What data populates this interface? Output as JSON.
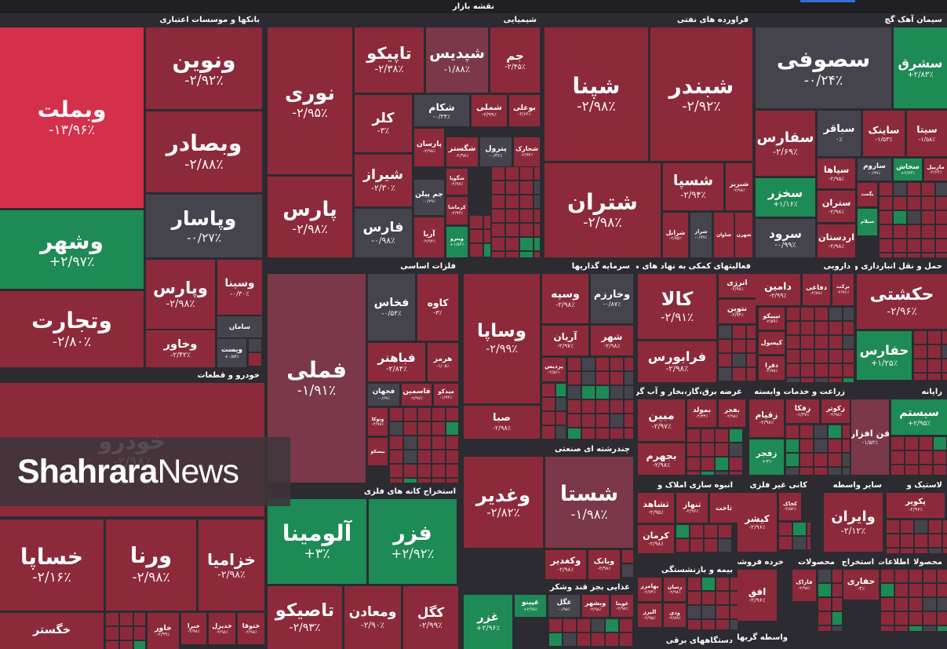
{
  "title": "نقشه بازار",
  "watermark": {
    "brand": "Shahrara",
    "suffix": "News"
  },
  "sectors": [
    {
      "name": "بانکها و موسسات اعتباری"
    },
    {
      "name": "شیمیایی"
    },
    {
      "name": "فراورده های نفتی"
    },
    {
      "name": "سیمان آهک گچ"
    },
    {
      "name": "خودرو و قطعات"
    },
    {
      "name": "فلزات اساسی"
    },
    {
      "name": "سرمایه گذاریها"
    },
    {
      "name": "فعالیتهای کمکی به نهاد های مالی"
    },
    {
      "name": "دارویی"
    },
    {
      "name": "حمل و نقل انبارداری و"
    },
    {
      "name": "عرضه برق،گاز،بخار و آب گرم"
    },
    {
      "name": "زراعت و خدمات وابسته"
    },
    {
      "name": "رایانه"
    },
    {
      "name": "استخراج کانه های فلزی"
    },
    {
      "name": "چندرشته ای صنعتی"
    },
    {
      "name": "انبوه سازی املاک و"
    },
    {
      "name": "کانی غیر فلزی"
    },
    {
      "name": "سایر واسطه"
    },
    {
      "name": "لاستیک و"
    },
    {
      "name": "بیمه و بازنشستگی"
    },
    {
      "name": "خرده فروشی"
    },
    {
      "name": "محصولات"
    },
    {
      "name": "استخراج"
    },
    {
      "name": "اطلاعات"
    },
    {
      "name": "محصولا"
    },
    {
      "name": "غذایی بجز قند وشکر"
    },
    {
      "name": "دستگاههای برقی"
    },
    {
      "name": "واسطه گریهای"
    }
  ],
  "tiles": [
    {
      "name": "وبملت",
      "change": "-۱۳/۹۶٪"
    },
    {
      "name": "ونوین",
      "change": "-۲/۹۲٪"
    },
    {
      "name": "وبصادر",
      "change": "-۲/۸۸٪"
    },
    {
      "name": "وپاسار",
      "change": "-۰/۲۷٪"
    },
    {
      "name": "وشهر",
      "change": "+۲/۹۷٪"
    },
    {
      "name": "وتجارت",
      "change": "-۲/۸۰٪"
    },
    {
      "name": "وپارس",
      "change": "-۲/۹۸٪"
    },
    {
      "name": "وخاور",
      "change": "-۲/۴۲٪"
    },
    {
      "name": "وسینا",
      "change": "-۰/۳۰٪"
    },
    {
      "name": "سامان"
    },
    {
      "name": "ویست",
      "change": "+۰/۵۳٪"
    },
    {
      "name": "نوری",
      "change": "-۲/۹۵٪"
    },
    {
      "name": "پارس",
      "change": "-۲/۹۸٪"
    },
    {
      "name": "تاپیکو",
      "change": "-۲/۳۸٪"
    },
    {
      "name": "شپدیس",
      "change": "-۱/۸۸٪"
    },
    {
      "name": "جم",
      "change": "-۲/۴۵٪"
    },
    {
      "name": "کلر",
      "change": "-۳٪"
    },
    {
      "name": "شیراز",
      "change": "-۲/۳۰٪"
    },
    {
      "name": "فارس",
      "change": "-۰/۹۸٪"
    },
    {
      "name": "شکام",
      "change": "-۰/۳۴٪"
    },
    {
      "name": "شملی",
      "change": "-۲/۹۹٪"
    },
    {
      "name": "بوعلی",
      "change": "-۲/۶۴٪"
    },
    {
      "name": "پارسان",
      "change": "-۲/۹۸٪"
    },
    {
      "name": "شگستر",
      "change": "-۲/۹۸٪"
    },
    {
      "name": "پترول",
      "change": "-۰/۳۶٪"
    },
    {
      "name": "شخارک",
      "change": "-۲/۹۴٪"
    },
    {
      "name": "جم پیلن",
      "change": "-۰/۷۹٪"
    },
    {
      "name": "شگویا",
      "change": "-۲/۹۷٪"
    },
    {
      "name": "کرماشا",
      "change": "-۲/۹۲٪"
    },
    {
      "name": "آریا",
      "change": "-۲/۹۴٪"
    },
    {
      "name": "ویترو",
      "change": "+۱/۵۴٪"
    },
    {
      "name": "شپنا",
      "change": "-۲/۹۸٪"
    },
    {
      "name": "شبندر",
      "change": "-۲/۹۲٪"
    },
    {
      "name": "شتران",
      "change": "-۲/۹۸٪"
    },
    {
      "name": "شسپا",
      "change": "-۲/۹۴٪"
    },
    {
      "name": "شبریز",
      "change": "-۲/۹۸٪"
    },
    {
      "name": "شرانل",
      "change": "-۲/۸۵٪"
    },
    {
      "name": "شراز",
      "change": "-۰/۹۹٪"
    },
    {
      "name": "شاوان"
    },
    {
      "name": "شهرن"
    },
    {
      "name": "سصوفی",
      "change": "-۰/۲۴٪"
    },
    {
      "name": "سشرق",
      "change": "+۲/۸۳٪"
    },
    {
      "name": "سفارس",
      "change": "-۲/۶۹٪"
    },
    {
      "name": "سباقر",
      "change": "۰٪"
    },
    {
      "name": "ساینک",
      "change": "-۱/۵۳٪"
    },
    {
      "name": "سیتا",
      "change": "-۱/۵۸٪"
    },
    {
      "name": "سخزر",
      "change": "+۱/۱۶٪"
    },
    {
      "name": "سرود",
      "change": "-۰/۹۹٪"
    },
    {
      "name": "سپاها",
      "change": "-۲/۹۵٪"
    },
    {
      "name": "ستران",
      "change": "-۲/۹۸٪"
    },
    {
      "name": "اردستان",
      "change": "-۲/۹۸٪"
    },
    {
      "name": "ساروم",
      "change": "-۰/۹۹٪"
    },
    {
      "name": "سخاش",
      "change": "+۲/۷۴٪"
    },
    {
      "name": "ماربیل",
      "change": "-۲/۶۴٪"
    },
    {
      "name": "بگمت"
    },
    {
      "name": "سیلام"
    },
    {
      "name": "خودرو",
      "change": "-۲/۹۸٪"
    },
    {
      "name": "خساپا",
      "change": "-۲/۱۶٪"
    },
    {
      "name": "ورنا",
      "change": "-۲/۹۸٪"
    },
    {
      "name": "خزامیا",
      "change": "-۲/۹۸٪"
    },
    {
      "name": "خگستر"
    },
    {
      "name": "خاور",
      "change": "-۲/۹۹٪"
    },
    {
      "name": "خبرا",
      "change": "-۲/۹۸٪"
    },
    {
      "name": "خدیزل",
      "change": "-۲/۹۸٪"
    },
    {
      "name": "ختوقا",
      "change": "-۲/۹۸٪"
    },
    {
      "name": "فملی",
      "change": "-۱/۹۱٪"
    },
    {
      "name": "فخاس",
      "change": "-۰/۵۴٪"
    },
    {
      "name": "کاوه",
      "change": "-۳٪"
    },
    {
      "name": "فباهنر",
      "change": "-۲/۸۴٪"
    },
    {
      "name": "هرمز",
      "change": "-۱/۰۵٪"
    },
    {
      "name": "فجهان",
      "change": "-۰/۶۹٪"
    },
    {
      "name": "فاسمین",
      "change": "-۲/۹۷٪"
    },
    {
      "name": "میدکو",
      "change": "-۱/۹۴٪"
    },
    {
      "name": "ونوکا",
      "change": "-۲/۹۸٪"
    },
    {
      "name": "بیسکو"
    },
    {
      "name": "آلومینا",
      "change": "+۳٪"
    },
    {
      "name": "فزر",
      "change": "+۲/۹۲٪"
    },
    {
      "name": "تاصیکو",
      "change": "-۲/۹۳٪"
    },
    {
      "name": "ومعادن",
      "change": "-۲/۹۰٪"
    },
    {
      "name": "کگل",
      "change": "-۲/۹۹٪"
    },
    {
      "name": "وساپا",
      "change": "-۲/۹۹٪"
    },
    {
      "name": "صبا",
      "change": "-۲/۹۸٪"
    },
    {
      "name": "وسپه",
      "change": "-۲/۹۸٪"
    },
    {
      "name": "وخارزم",
      "change": "-۰/۸۷٪"
    },
    {
      "name": "آریان",
      "change": "-۲/۹۷٪"
    },
    {
      "name": "شهر",
      "change": "-۲/۹۸٪"
    },
    {
      "name": "پردیس",
      "change": "-۲/۵۶٪"
    },
    {
      "name": "وغدیر",
      "change": "-۲/۸۲٪"
    },
    {
      "name": "شستا",
      "change": "-۱/۹۸٪"
    },
    {
      "name": "وکغدیر",
      "change": "-۲/۹۸٪"
    },
    {
      "name": "وبانک",
      "change": "-۲/۹۸٪"
    },
    {
      "name": "کالا",
      "change": "-۲/۹۱٪"
    },
    {
      "name": "انرژی",
      "change": "-۲/۹۸٪"
    },
    {
      "name": "نتوین",
      "change": "-۲/۹۴٪"
    },
    {
      "name": "فرابورس",
      "change": "-۲/۹۸٪"
    },
    {
      "name": "دامین",
      "change": "-۲/۹۹٪"
    },
    {
      "name": "دفاعی",
      "change": "-۲/۷۸٪"
    },
    {
      "name": "برکت",
      "change": "-۲/۹۶٪"
    },
    {
      "name": "تیپیکو",
      "change": "-۲/۵۹٪"
    },
    {
      "name": "کپسول"
    },
    {
      "name": "دفرا",
      "change": "-۲/۹۸٪"
    },
    {
      "name": "حکشتی",
      "change": "-۲/۹۶٪"
    },
    {
      "name": "حفارس",
      "change": "+۱/۲۵٪"
    },
    {
      "name": "مبین",
      "change": "-۲/۹۷٪"
    },
    {
      "name": "بمولد",
      "change": "-۲/۳۳٪"
    },
    {
      "name": "بفجر",
      "change": "-۲/۹۸٪"
    },
    {
      "name": "بجهرم",
      "change": "-۲/۹۸٪"
    },
    {
      "name": "زقیام",
      "change": "-۲/۹۸٪"
    },
    {
      "name": "زفکا",
      "change": "-۱/۳۷٪"
    },
    {
      "name": "زکوثر",
      "change": "-۲/۹۸٪"
    },
    {
      "name": "زفجر",
      "change": "+۳٪"
    },
    {
      "name": "فن افزار",
      "change": "-۱/۵۲٪"
    },
    {
      "name": "سیستم",
      "change": "+۲/۹۵٪"
    },
    {
      "name": "ثاخت"
    },
    {
      "name": "ثنهاز",
      "change": "-۲/۹۶٪"
    },
    {
      "name": "ثشاهد",
      "change": "-۲/۹۵٪"
    },
    {
      "name": "کرمان",
      "change": "-۲/۹۸٪"
    },
    {
      "name": "کیشر",
      "change": "-۲/۹۶٪"
    },
    {
      "name": "کخاک",
      "change": "-۲/۵۲٪"
    },
    {
      "name": "وایران",
      "change": "-۲/۱۲٪"
    },
    {
      "name": "پکویر",
      "change": "-۲/۹۶٪"
    },
    {
      "name": "افق",
      "change": "-۲/۹۶٪"
    },
    {
      "name": "فاراک",
      "change": "-۲/۹۸٪"
    },
    {
      "name": "حفاری",
      "change": "-۳٪"
    },
    {
      "name": "بهامرز",
      "change": "-۲/۷۴٪"
    },
    {
      "name": "رسان",
      "change": "-۲/۹۸٪"
    },
    {
      "name": "البرز",
      "change": "-۲/۹۵٪"
    },
    {
      "name": "ودی",
      "change": "-۲/۸۹٪"
    },
    {
      "name": "غزر",
      "change": "+۲/۹۶٪"
    },
    {
      "name": "غپینو",
      "change": "+۲/۹۸٪"
    },
    {
      "name": "غگل",
      "change": "-۰/۹۸٪"
    },
    {
      "name": "وبشهر",
      "change": "-۲/۹۸٪"
    },
    {
      "name": "غویتا",
      "change": "-۲/۹۸٪"
    }
  ]
}
